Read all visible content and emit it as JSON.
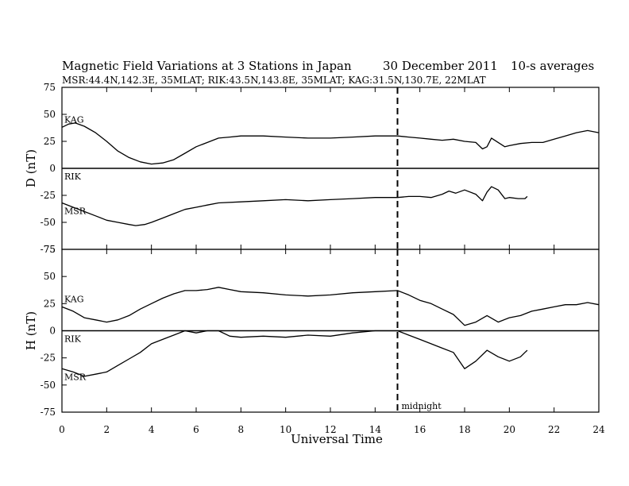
{
  "header": {
    "title": "Magnetic Field Variations at 3 Stations in Japan",
    "date": "30 December 2011",
    "averaging": "10-s averages",
    "stations": "MSR:44.4N,142.3E, 35MLAT;  RIK:43.5N,143.8E, 35MLAT;  KAG:31.5N,130.7E, 22MLAT"
  },
  "chart_data": [
    {
      "type": "line",
      "panel": "D",
      "xlabel": "Universal Time",
      "ylabel": "D (nT)",
      "xlim": [
        0,
        24
      ],
      "ylim": [
        -75,
        75
      ],
      "xticks": [
        0,
        2,
        4,
        6,
        8,
        10,
        12,
        14,
        16,
        18,
        20,
        22,
        24
      ],
      "yticks": [
        75,
        50,
        25,
        0,
        -25,
        -50,
        -75
      ],
      "marker": {
        "x": 15,
        "label": ""
      },
      "series": [
        {
          "name": "KAG",
          "x": [
            0,
            0.3,
            0.6,
            1.0,
            1.5,
            2.0,
            2.5,
            3.0,
            3.5,
            4.0,
            4.5,
            5.0,
            5.5,
            6.0,
            6.5,
            7.0,
            7.5,
            8.0,
            9.0,
            10.0,
            11.0,
            12.0,
            13.0,
            14.0,
            15.0,
            15.5,
            16.0,
            16.5,
            17.0,
            17.5,
            18.0,
            18.5,
            18.8,
            19.0,
            19.2,
            19.5,
            19.8,
            20.0,
            20.5,
            21.0,
            21.5,
            22.0,
            22.5,
            23.0,
            23.5,
            24.0
          ],
          "values": [
            38,
            41,
            42,
            39,
            33,
            25,
            16,
            10,
            6,
            4,
            5,
            8,
            14,
            20,
            24,
            28,
            29,
            30,
            30,
            29,
            28,
            28,
            29,
            30,
            30,
            29,
            28,
            27,
            26,
            27,
            25,
            24,
            18,
            20,
            28,
            24,
            20,
            21,
            23,
            24,
            24,
            27,
            30,
            33,
            35,
            33
          ]
        },
        {
          "name": "RIK",
          "x": [
            0,
            24
          ],
          "values": [
            0,
            0
          ]
        },
        {
          "name": "MSR",
          "x": [
            0,
            0.5,
            1.0,
            1.5,
            2.0,
            2.5,
            3.0,
            3.3,
            3.7,
            4.0,
            4.5,
            5.0,
            5.5,
            6.0,
            6.5,
            7.0,
            8.0,
            9.0,
            10.0,
            11.0,
            12.0,
            13.0,
            14.0,
            15.0,
            15.5,
            16.0,
            16.5,
            17.0,
            17.3,
            17.6,
            18.0,
            18.5,
            18.8,
            19.0,
            19.2,
            19.5,
            19.8,
            20.0,
            20.4,
            20.7,
            20.8
          ],
          "values": [
            -32,
            -36,
            -40,
            -44,
            -48,
            -50,
            -52,
            -53,
            -52,
            -50,
            -46,
            -42,
            -38,
            -36,
            -34,
            -32,
            -31,
            -30,
            -29,
            -30,
            -29,
            -28,
            -27,
            -27,
            -26,
            -26,
            -27,
            -24,
            -21,
            -23,
            -20,
            -24,
            -30,
            -22,
            -17,
            -20,
            -28,
            -27,
            -28,
            -28,
            -26
          ]
        }
      ]
    },
    {
      "type": "line",
      "panel": "H",
      "xlabel": "Universal Time",
      "ylabel": "H (nT)",
      "xlim": [
        0,
        24
      ],
      "ylim": [
        -75,
        75
      ],
      "xticks": [
        0,
        2,
        4,
        6,
        8,
        10,
        12,
        14,
        16,
        18,
        20,
        22,
        24
      ],
      "yticks": [
        75,
        50,
        25,
        0,
        -25,
        -50,
        -75
      ],
      "marker": {
        "x": 15,
        "label": "midnight"
      },
      "series": [
        {
          "name": "KAG",
          "x": [
            0,
            0.5,
            1.0,
            1.5,
            2.0,
            2.5,
            3.0,
            3.5,
            4.0,
            4.5,
            5.0,
            5.5,
            6.0,
            6.5,
            7.0,
            7.5,
            8.0,
            9.0,
            10.0,
            11.0,
            12.0,
            13.0,
            14.0,
            15.0,
            15.5,
            16.0,
            16.5,
            17.0,
            17.5,
            18.0,
            18.5,
            19.0,
            19.5,
            20.0,
            20.5,
            21.0,
            21.5,
            22.0,
            22.5,
            23.0,
            23.5,
            24.0
          ],
          "values": [
            22,
            18,
            12,
            10,
            8,
            10,
            14,
            20,
            25,
            30,
            34,
            37,
            37,
            38,
            40,
            38,
            36,
            35,
            33,
            32,
            33,
            35,
            36,
            37,
            33,
            28,
            25,
            20,
            15,
            5,
            8,
            14,
            8,
            12,
            14,
            18,
            20,
            22,
            24,
            24,
            26,
            24
          ]
        },
        {
          "name": "RIK",
          "x": [
            0,
            24
          ],
          "values": [
            0,
            0
          ]
        },
        {
          "name": "MSR",
          "x": [
            0,
            0.5,
            1.0,
            1.5,
            2.0,
            2.5,
            3.0,
            3.5,
            4.0,
            4.5,
            5.0,
            5.5,
            6.0,
            6.5,
            7.0,
            7.5,
            8.0,
            9.0,
            10.0,
            11.0,
            12.0,
            13.0,
            14.0,
            15.0,
            15.5,
            16.0,
            16.5,
            17.0,
            17.5,
            18.0,
            18.5,
            19.0,
            19.5,
            20.0,
            20.5,
            20.7,
            20.8
          ],
          "values": [
            -35,
            -38,
            -42,
            -40,
            -38,
            -32,
            -26,
            -20,
            -12,
            -8,
            -4,
            0,
            -2,
            0,
            0,
            -5,
            -6,
            -5,
            -6,
            -4,
            -5,
            -2,
            0,
            0,
            -4,
            -8,
            -12,
            -16,
            -20,
            -35,
            -28,
            -18,
            -24,
            -28,
            -24,
            -20,
            -18
          ]
        }
      ]
    }
  ]
}
